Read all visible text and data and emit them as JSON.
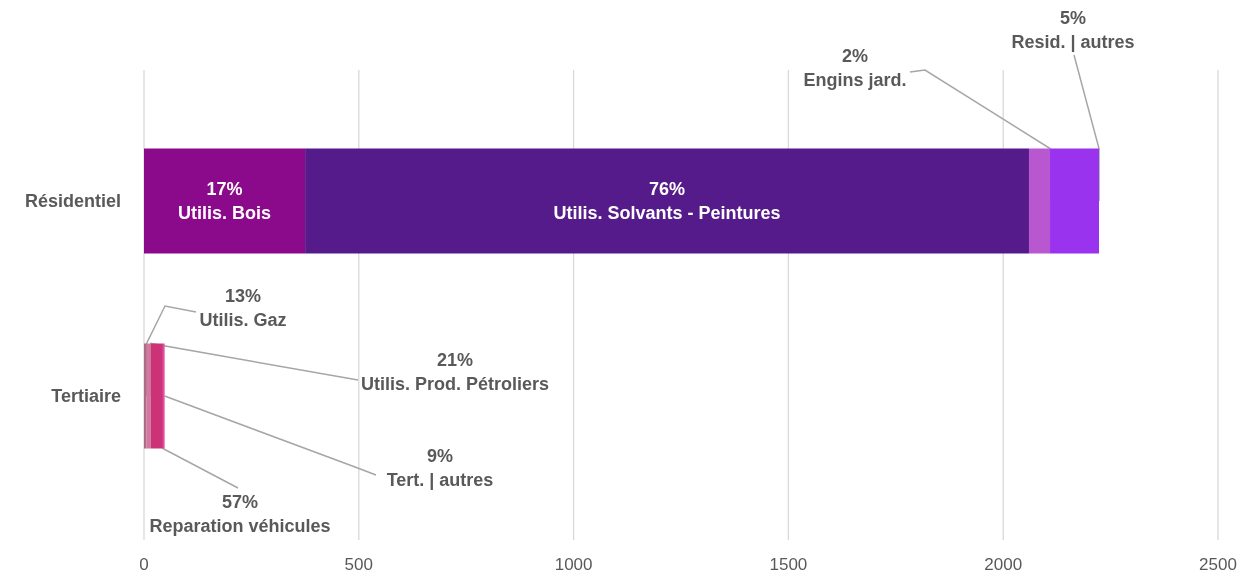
{
  "chart_data": {
    "type": "bar",
    "orientation": "horizontal",
    "stacked": true,
    "categories": [
      "Résidentiel",
      "Tertiaire"
    ],
    "xlim": [
      0,
      2500
    ],
    "xticks": [
      0,
      500,
      1000,
      1500,
      2000,
      2500
    ],
    "grid": "x",
    "legend": false,
    "series": [
      {
        "color": "#8b0a8b",
        "values": [
          375,
          null
        ]
      },
      {
        "color": "#561b8b",
        "values": [
          1685,
          null
        ]
      },
      {
        "color": "#b957d0",
        "values": [
          49,
          null
        ]
      },
      {
        "color": "#9933ee",
        "values": [
          114,
          null
        ]
      },
      {
        "color": "#b06a84",
        "values": [
          null,
          6
        ]
      },
      {
        "color": "#d07a9e",
        "values": [
          null,
          10
        ]
      },
      {
        "color": "#cc3377",
        "values": [
          null,
          28
        ]
      },
      {
        "color": "#e448a8",
        "values": [
          null,
          4
        ]
      }
    ],
    "annotations": [
      "17%\nUtilis. Bois",
      "76%\nUtilis. Solvants - Peintures",
      {
        "text": "2%\nEngins jard.",
        "x": 2109,
        "y": "Résidentiel"
      },
      {
        "text": "5%\nResid. | autres",
        "x": 2223,
        "y": "Résidentiel"
      },
      {
        "text": "13%\nUtilis. Gaz",
        "x": 6,
        "y": "Tertiaire"
      },
      {
        "text": "21%\nUtilis. Prod. Pétroliers",
        "x": 16,
        "y": "Tertiaire"
      },
      {
        "text": "57%\nReparation véhicules",
        "x": 44,
        "y": "Tertiaire"
      },
      {
        "text": "9%\nTert. | autres",
        "x": 48,
        "y": "Tertiaire"
      }
    ]
  }
}
